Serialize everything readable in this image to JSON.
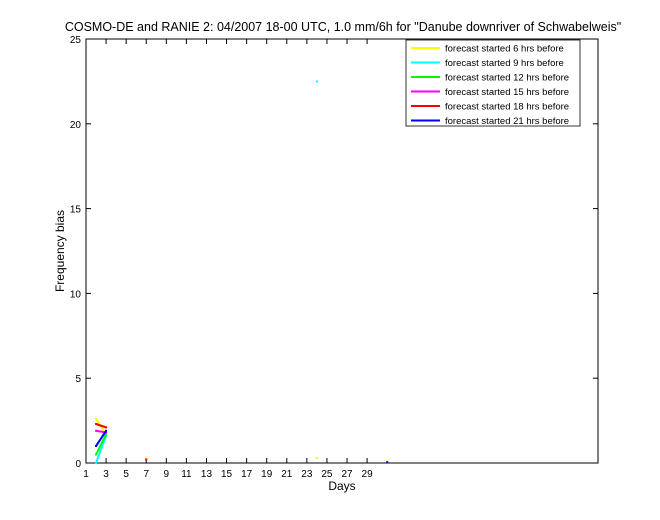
{
  "chart_data": {
    "type": "line",
    "title": "COSMO-DE and RANIE 2: 04/2007 18-00 UTC, 1.0 mm/6h for \"Danube downriver of Schwabelweis\"",
    "xlabel": "Days",
    "ylabel": "Frequency bias",
    "xlim": [
      1,
      52
    ],
    "ylim": [
      0,
      25
    ],
    "xticks": [
      1,
      3,
      5,
      7,
      9,
      11,
      13,
      15,
      17,
      19,
      21,
      23,
      25,
      27,
      29
    ],
    "yticks": [
      0,
      5,
      10,
      15,
      20,
      25
    ],
    "grid": false,
    "legend_position": "top-right",
    "series": [
      {
        "name": "forecast started 6 hrs before",
        "color": "#ffff00",
        "x": [
          2,
          3,
          7,
          24,
          31
        ],
        "y": [
          2.6,
          1.7,
          0.3,
          0.3,
          0.1
        ]
      },
      {
        "name": "forecast started 9 hrs before",
        "color": "#00ffff",
        "x": [
          2,
          3,
          24
        ],
        "y": [
          0.0,
          1.6,
          22.5
        ]
      },
      {
        "name": "forecast started 12 hrs before",
        "color": "#00ff00",
        "x": [
          2,
          3
        ],
        "y": [
          0.5,
          1.7
        ]
      },
      {
        "name": "forecast started 15 hrs before",
        "color": "#ff00ff",
        "x": [
          2,
          3,
          7
        ],
        "y": [
          1.9,
          1.8,
          0.2
        ]
      },
      {
        "name": "forecast started 18 hrs before",
        "color": "#ff0000",
        "x": [
          2,
          3,
          7
        ],
        "y": [
          2.3,
          2.1,
          0.2
        ]
      },
      {
        "name": "forecast started 21 hrs before",
        "color": "#0000ff",
        "x": [
          2,
          3,
          31
        ],
        "y": [
          1.0,
          1.9,
          0.05
        ]
      }
    ]
  }
}
